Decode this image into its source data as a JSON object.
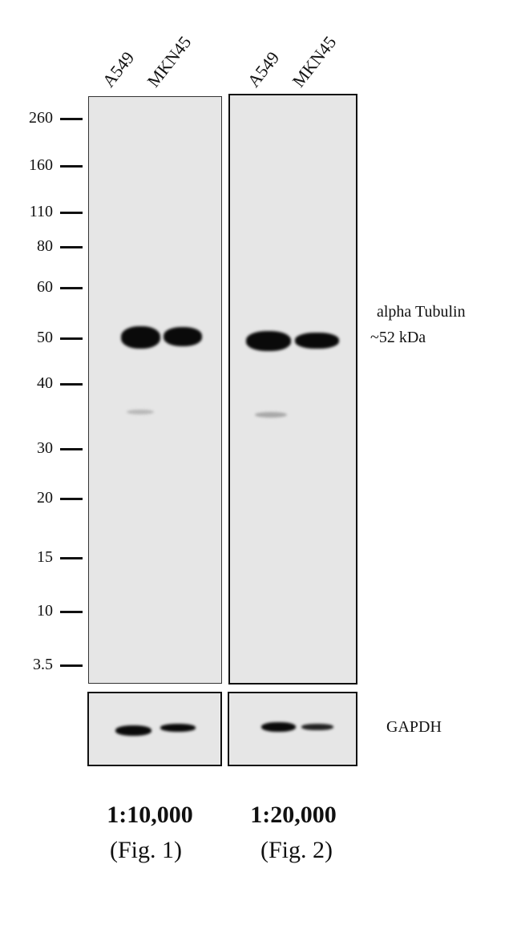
{
  "lanes": {
    "blot1": [
      "A549",
      "MKN45"
    ],
    "blot2": [
      "A549",
      "MKN45"
    ]
  },
  "mw_markers": [
    "260",
    "160",
    "110",
    "80",
    "60",
    "50",
    "40",
    "30",
    "20",
    "15",
    "10",
    "3.5"
  ],
  "target": {
    "name": "alpha Tubulin",
    "size": "~52 kDa"
  },
  "loading_control": "GAPDH",
  "conditions": [
    {
      "dilution": "1:10,000",
      "figure": "(Fig. 1)"
    },
    {
      "dilution": "1:20,000",
      "figure": "(Fig. 2)"
    }
  ]
}
